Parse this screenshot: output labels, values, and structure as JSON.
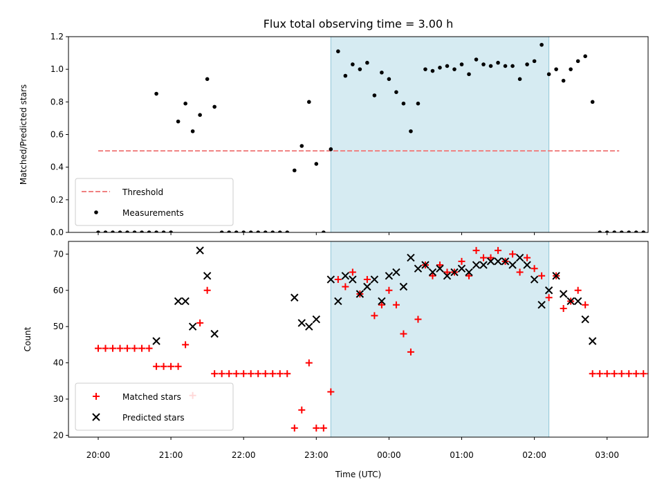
{
  "chart_data": [
    {
      "type": "scatter",
      "title": "Flux total observing time = 3.00 h",
      "ylabel": "Matched/Predicted stars",
      "xlabel": "",
      "ylim": [
        0,
        1.2
      ],
      "yticks": [
        "0.0",
        "0.2",
        "0.4",
        "0.6",
        "0.8",
        "1.0",
        "1.2"
      ],
      "shaded_interval": [
        "23:12",
        "02:12"
      ],
      "threshold": {
        "name": "Threshold",
        "y": 0.5,
        "x_range": [
          "20:00",
          "03:10"
        ],
        "color": "#f08080"
      },
      "legend_position": "lower-left",
      "series": [
        {
          "name": "Measurements",
          "color": "#000000",
          "points": [
            [
              "20:00",
              0
            ],
            [
              "20:06",
              0
            ],
            [
              "20:12",
              0
            ],
            [
              "20:18",
              0
            ],
            [
              "20:24",
              0
            ],
            [
              "20:30",
              0
            ],
            [
              "20:36",
              0
            ],
            [
              "20:42",
              0
            ],
            [
              "20:48",
              0
            ],
            [
              "20:48",
              0.85
            ],
            [
              "20:54",
              0
            ],
            [
              "21:00",
              0
            ],
            [
              "21:06",
              0.68
            ],
            [
              "21:12",
              0.79
            ],
            [
              "21:18",
              0.62
            ],
            [
              "21:24",
              0.72
            ],
            [
              "21:30",
              0.94
            ],
            [
              "21:36",
              0.77
            ],
            [
              "21:42",
              0
            ],
            [
              "21:48",
              0
            ],
            [
              "21:54",
              0
            ],
            [
              "22:00",
              0
            ],
            [
              "22:06",
              0
            ],
            [
              "22:12",
              0
            ],
            [
              "22:18",
              0
            ],
            [
              "22:24",
              0
            ],
            [
              "22:30",
              0
            ],
            [
              "22:36",
              0
            ],
            [
              "22:42",
              0.38
            ],
            [
              "22:48",
              0.53
            ],
            [
              "22:54",
              0.8
            ],
            [
              "23:00",
              0.42
            ],
            [
              "23:06",
              0
            ],
            [
              "23:12",
              0.51
            ],
            [
              "23:18",
              1.11
            ],
            [
              "23:24",
              0.96
            ],
            [
              "23:30",
              1.03
            ],
            [
              "23:36",
              1.0
            ],
            [
              "23:42",
              1.04
            ],
            [
              "23:48",
              0.84
            ],
            [
              "23:54",
              0.98
            ],
            [
              "00:00",
              0.94
            ],
            [
              "00:06",
              0.86
            ],
            [
              "00:12",
              0.79
            ],
            [
              "00:18",
              0.62
            ],
            [
              "00:24",
              0.79
            ],
            [
              "00:30",
              1.0
            ],
            [
              "00:36",
              0.99
            ],
            [
              "00:42",
              1.01
            ],
            [
              "00:48",
              1.02
            ],
            [
              "00:54",
              1.0
            ],
            [
              "01:00",
              1.03
            ],
            [
              "01:06",
              0.97
            ],
            [
              "01:12",
              1.06
            ],
            [
              "01:18",
              1.03
            ],
            [
              "01:24",
              1.02
            ],
            [
              "01:30",
              1.04
            ],
            [
              "01:36",
              1.02
            ],
            [
              "01:42",
              1.02
            ],
            [
              "01:48",
              0.94
            ],
            [
              "01:54",
              1.03
            ],
            [
              "02:00",
              1.05
            ],
            [
              "02:06",
              1.15
            ],
            [
              "02:12",
              0.97
            ],
            [
              "02:18",
              1.0
            ],
            [
              "02:24",
              0.93
            ],
            [
              "02:30",
              1.0
            ],
            [
              "02:36",
              1.05
            ],
            [
              "02:42",
              1.08
            ],
            [
              "02:48",
              0.8
            ],
            [
              "02:54",
              0
            ],
            [
              "03:00",
              0
            ],
            [
              "03:06",
              0
            ],
            [
              "03:12",
              0
            ],
            [
              "03:18",
              0
            ],
            [
              "03:24",
              0
            ],
            [
              "03:30",
              0
            ],
            [
              "03:36",
              0
            ],
            [
              "03:42",
              0
            ],
            [
              "03:48",
              0
            ],
            [
              "03:54",
              0
            ],
            [
              "04:00",
              0
            ]
          ]
        }
      ]
    },
    {
      "type": "scatter",
      "title": "",
      "ylabel": "Count",
      "xlabel": "Time (UTC)",
      "ylim": [
        19.5,
        73.5
      ],
      "yticks": [
        "20",
        "30",
        "40",
        "50",
        "60",
        "70"
      ],
      "xticks": [
        "20:00",
        "21:00",
        "22:00",
        "23:00",
        "00:00",
        "01:00",
        "02:00",
        "03:00"
      ],
      "shaded_interval": [
        "23:12",
        "02:12"
      ],
      "legend_position": "lower-left",
      "series": [
        {
          "name": "Matched stars",
          "marker": "plus",
          "color": "#ff0000",
          "points": [
            [
              "20:00",
              44
            ],
            [
              "20:06",
              44
            ],
            [
              "20:12",
              44
            ],
            [
              "20:18",
              44
            ],
            [
              "20:24",
              44
            ],
            [
              "20:30",
              44
            ],
            [
              "20:36",
              44
            ],
            [
              "20:42",
              44
            ],
            [
              "20:48",
              39
            ],
            [
              "20:54",
              39
            ],
            [
              "21:00",
              39
            ],
            [
              "21:06",
              39
            ],
            [
              "21:12",
              45
            ],
            [
              "21:18",
              31
            ],
            [
              "21:24",
              51
            ],
            [
              "21:30",
              60
            ],
            [
              "21:36",
              37
            ],
            [
              "21:42",
              37
            ],
            [
              "21:48",
              37
            ],
            [
              "21:54",
              37
            ],
            [
              "22:00",
              37
            ],
            [
              "22:06",
              37
            ],
            [
              "22:12",
              37
            ],
            [
              "22:18",
              37
            ],
            [
              "22:24",
              37
            ],
            [
              "22:30",
              37
            ],
            [
              "22:36",
              37
            ],
            [
              "22:42",
              22
            ],
            [
              "22:48",
              27
            ],
            [
              "22:54",
              40
            ],
            [
              "23:00",
              22
            ],
            [
              "23:06",
              22
            ],
            [
              "23:12",
              32
            ],
            [
              "23:18",
              63
            ],
            [
              "23:24",
              61
            ],
            [
              "23:30",
              65
            ],
            [
              "23:36",
              59
            ],
            [
              "23:42",
              63
            ],
            [
              "23:48",
              53
            ],
            [
              "23:54",
              56
            ],
            [
              "00:00",
              60
            ],
            [
              "00:06",
              56
            ],
            [
              "00:12",
              48
            ],
            [
              "00:18",
              43
            ],
            [
              "00:24",
              52
            ],
            [
              "00:30",
              67
            ],
            [
              "00:36",
              64
            ],
            [
              "00:42",
              67
            ],
            [
              "00:48",
              65
            ],
            [
              "00:54",
              65
            ],
            [
              "01:00",
              68
            ],
            [
              "01:06",
              64
            ],
            [
              "01:12",
              71
            ],
            [
              "01:18",
              69
            ],
            [
              "01:24",
              69
            ],
            [
              "01:30",
              71
            ],
            [
              "01:36",
              68
            ],
            [
              "01:42",
              70
            ],
            [
              "01:48",
              65
            ],
            [
              "01:54",
              69
            ],
            [
              "02:00",
              66
            ],
            [
              "02:06",
              64
            ],
            [
              "02:12",
              58
            ],
            [
              "02:18",
              64
            ],
            [
              "02:24",
              55
            ],
            [
              "02:30",
              57
            ],
            [
              "02:36",
              60
            ],
            [
              "02:42",
              56
            ],
            [
              "02:48",
              37
            ],
            [
              "02:54",
              37
            ],
            [
              "03:00",
              37
            ],
            [
              "03:06",
              37
            ],
            [
              "03:12",
              37
            ],
            [
              "03:18",
              37
            ],
            [
              "03:24",
              37
            ],
            [
              "03:30",
              37
            ],
            [
              "03:36",
              37
            ],
            [
              "03:42",
              37
            ],
            [
              "03:48",
              37
            ],
            [
              "03:54",
              37
            ],
            [
              "04:00",
              37
            ]
          ]
        },
        {
          "name": "Predicted stars",
          "marker": "x",
          "color": "#000000",
          "points": [
            [
              "20:48",
              46
            ],
            [
              "21:06",
              57
            ],
            [
              "21:12",
              57
            ],
            [
              "21:18",
              50
            ],
            [
              "21:24",
              71
            ],
            [
              "21:30",
              64
            ],
            [
              "21:36",
              48
            ],
            [
              "22:42",
              58
            ],
            [
              "22:48",
              51
            ],
            [
              "22:54",
              50
            ],
            [
              "23:00",
              52
            ],
            [
              "23:12",
              63
            ],
            [
              "23:18",
              57
            ],
            [
              "23:24",
              64
            ],
            [
              "23:30",
              63
            ],
            [
              "23:36",
              59
            ],
            [
              "23:42",
              61
            ],
            [
              "23:48",
              63
            ],
            [
              "23:54",
              57
            ],
            [
              "00:00",
              64
            ],
            [
              "00:06",
              65
            ],
            [
              "00:12",
              61
            ],
            [
              "00:18",
              69
            ],
            [
              "00:24",
              66
            ],
            [
              "00:30",
              67
            ],
            [
              "00:36",
              65
            ],
            [
              "00:42",
              66
            ],
            [
              "00:48",
              64
            ],
            [
              "00:54",
              65
            ],
            [
              "01:00",
              66
            ],
            [
              "01:06",
              65
            ],
            [
              "01:12",
              67
            ],
            [
              "01:18",
              67
            ],
            [
              "01:24",
              68
            ],
            [
              "01:30",
              68
            ],
            [
              "01:36",
              68
            ],
            [
              "01:42",
              67
            ],
            [
              "01:48",
              69
            ],
            [
              "01:54",
              67
            ],
            [
              "02:00",
              63
            ],
            [
              "02:06",
              56
            ],
            [
              "02:12",
              60
            ],
            [
              "02:18",
              64
            ],
            [
              "02:24",
              59
            ],
            [
              "02:30",
              57
            ],
            [
              "02:36",
              57
            ],
            [
              "02:42",
              52
            ],
            [
              "02:48",
              46
            ]
          ]
        }
      ]
    }
  ]
}
